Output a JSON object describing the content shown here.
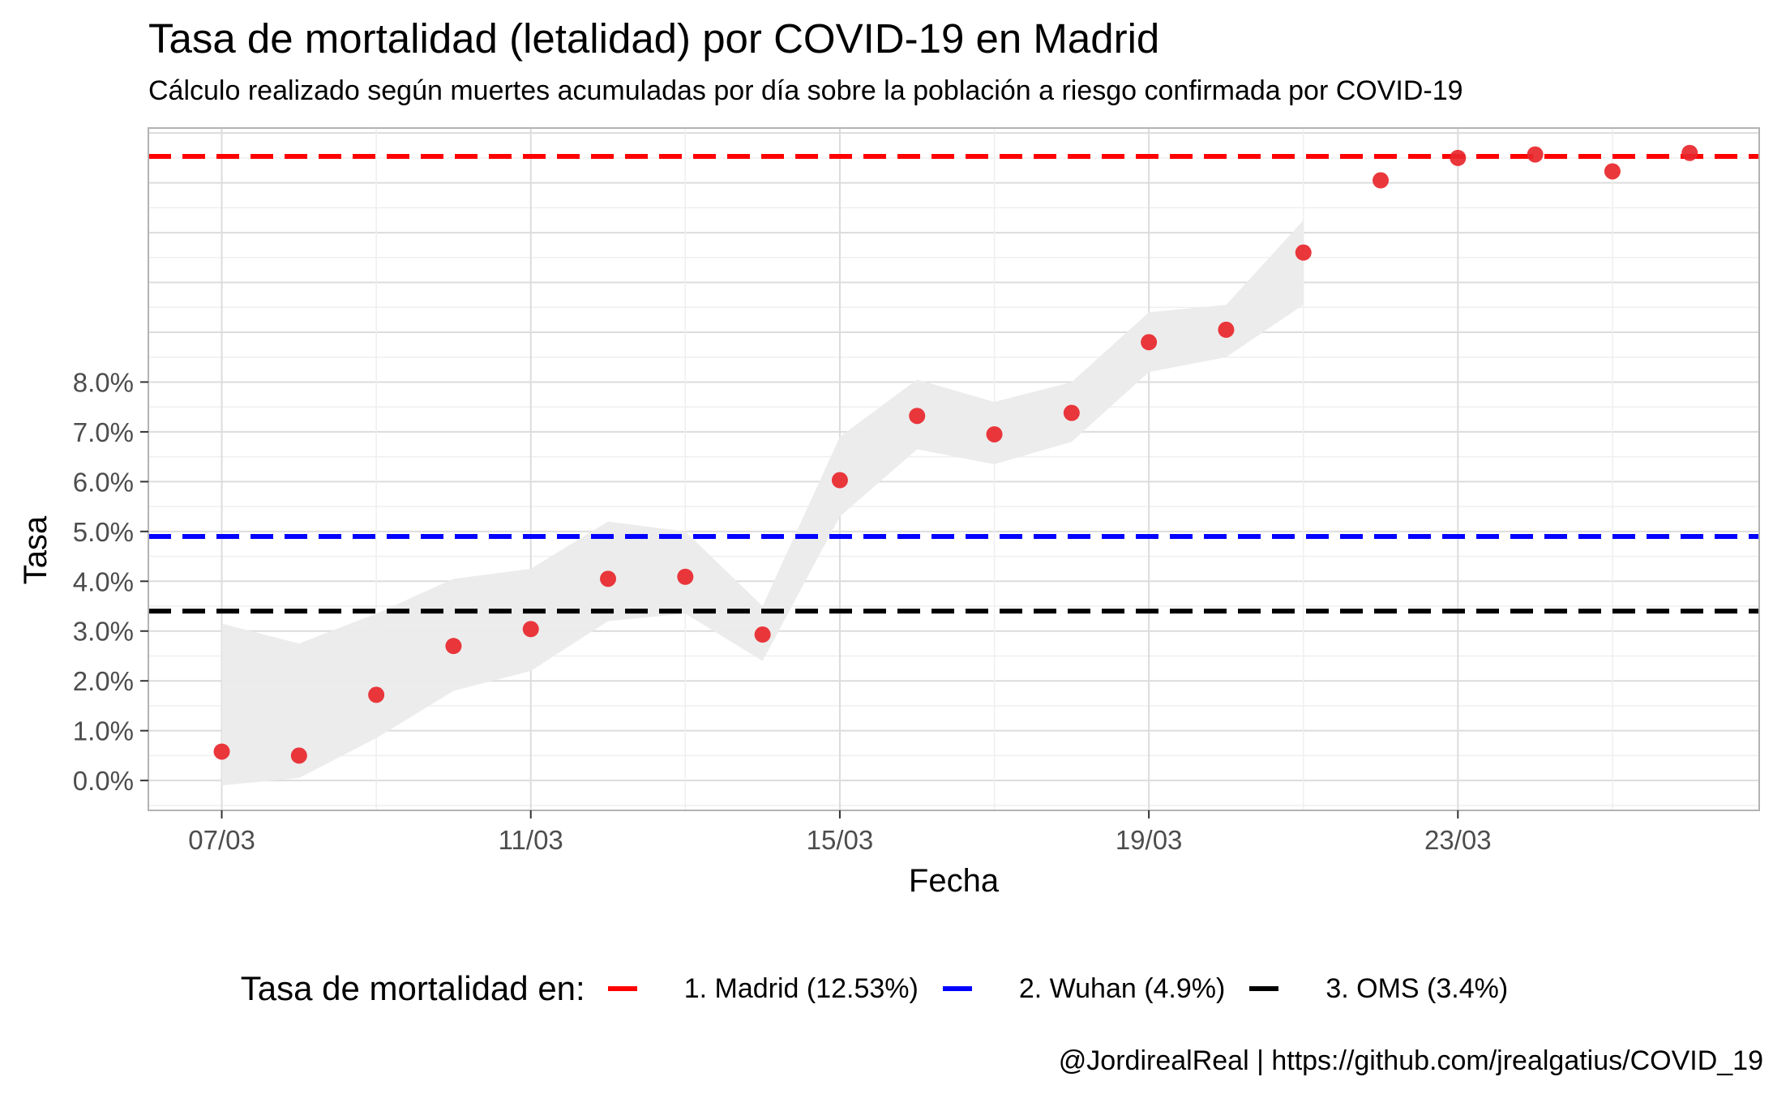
{
  "chart_data": {
    "type": "scatter",
    "title": "Tasa de mortalidad (letalidad) por COVID-19 en Madrid",
    "subtitle": "Cálculo realizado según muertes acumuladas por día sobre la población a riesgo confirmada por COVID-19",
    "caption": "@JordirealReal | https://github.com/jrealgatius/COVID_19",
    "xlabel": "Fecha",
    "ylabel": "Tasa",
    "x_tick_labels": [
      "07/03",
      "11/03",
      "15/03",
      "19/03",
      "23/03"
    ],
    "y_tick_labels": [
      "0.0%",
      "1.0%",
      "2.0%",
      "3.0%",
      "4.0%",
      "5.0%",
      "6.0%",
      "7.0%",
      "8.0%"
    ],
    "ylim": [
      -0.6,
      13.1
    ],
    "xlim": [
      -0.95,
      19.9
    ],
    "grid": true,
    "legend_position": "bottom",
    "x": [
      "07/03",
      "08/03",
      "09/03",
      "10/03",
      "11/03",
      "12/03",
      "13/03",
      "14/03",
      "15/03",
      "16/03",
      "17/03",
      "18/03",
      "19/03",
      "20/03",
      "21/03",
      "22/03",
      "23/03",
      "24/03",
      "25/03",
      "26/03"
    ],
    "series": [
      {
        "type": "scatter",
        "color": "#e8262b",
        "values": [
          0.58,
          0.5,
          1.72,
          2.7,
          3.04,
          4.05,
          4.09,
          2.93,
          6.03,
          7.32,
          6.95,
          7.38,
          8.8,
          9.05,
          10.6,
          12.05,
          12.5,
          12.57,
          12.23,
          12.6
        ]
      },
      {
        "type": "band",
        "color": "#ebebeb",
        "x_range": [
          "07/03",
          "21/03"
        ],
        "lower": [
          -0.1,
          0.05,
          0.85,
          1.8,
          2.2,
          3.2,
          3.35,
          2.4,
          5.3,
          6.65,
          6.35,
          6.8,
          8.2,
          8.5,
          9.55
        ],
        "upper": [
          3.15,
          2.75,
          3.35,
          4.05,
          4.25,
          5.2,
          5.0,
          3.5,
          6.9,
          8.05,
          7.6,
          8.0,
          9.4,
          9.55,
          11.25
        ]
      }
    ],
    "reference_lines": [
      {
        "label": "1. Madrid (12.53%)",
        "value": 12.53,
        "color": "#ff0000"
      },
      {
        "label": "2. Wuhan (4.9%)",
        "value": 4.9,
        "color": "#0000ff"
      },
      {
        "label": "3. OMS (3.4%)",
        "value": 3.4,
        "color": "#000000"
      }
    ],
    "legend_title": "Tasa de mortalidad en:"
  }
}
